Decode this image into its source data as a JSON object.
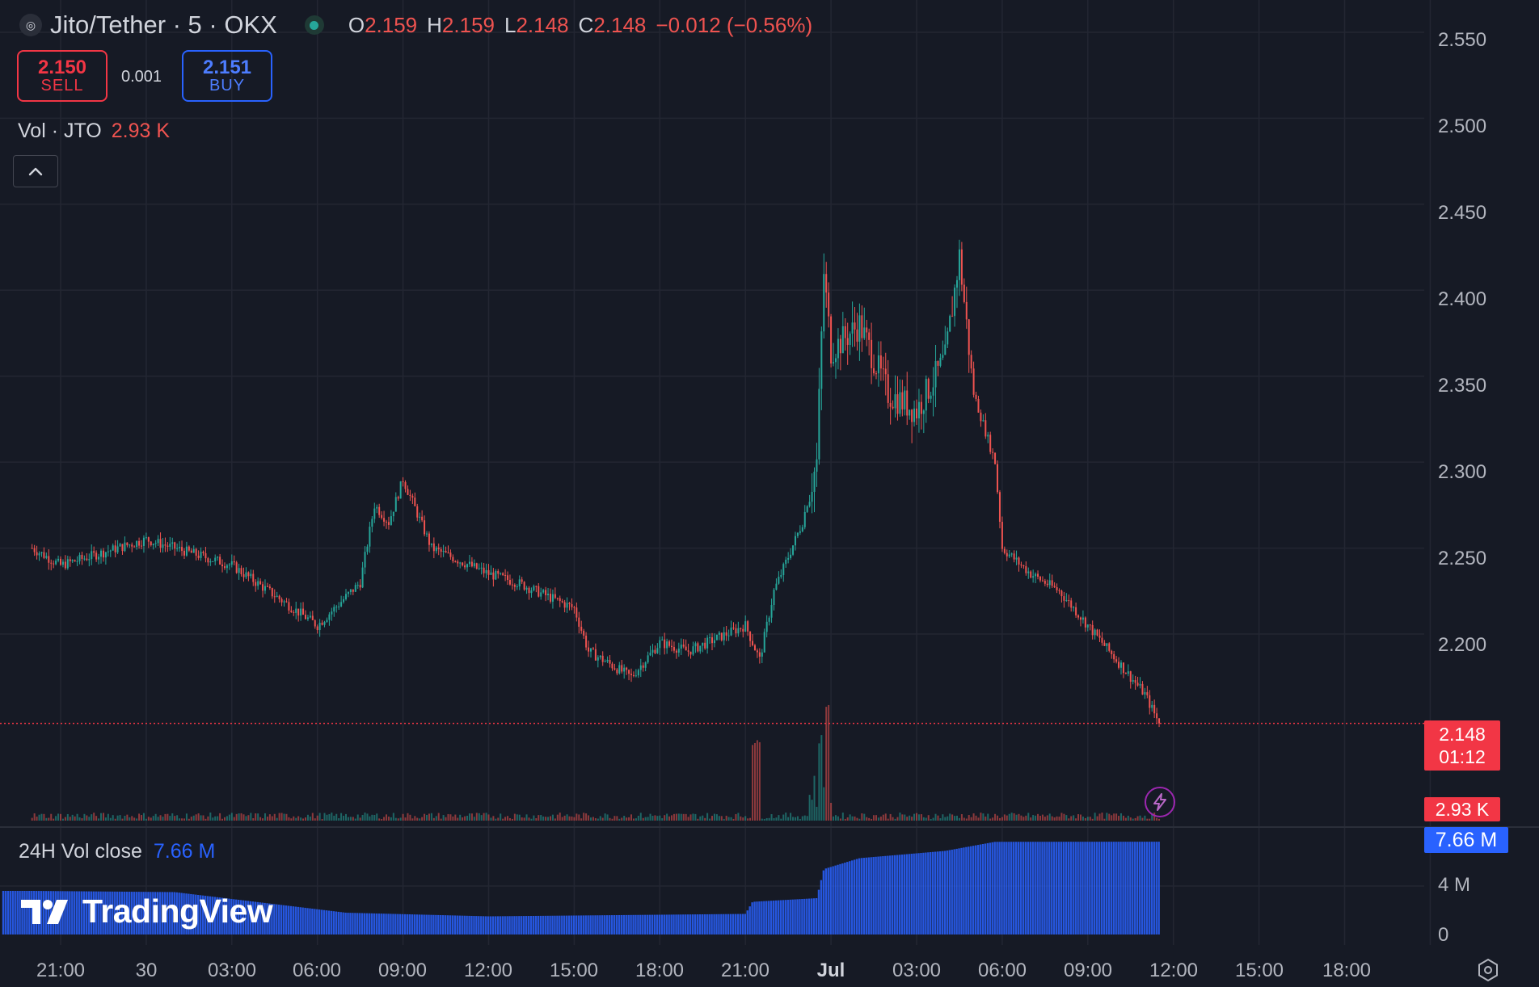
{
  "header": {
    "symbol": "Jito/Tether · 5 · OKX",
    "symbol_icon": "jito-logo-icon",
    "market_status_icon": "market-open-dot-icon",
    "ohlc": [
      {
        "key": "O",
        "value": "2.159"
      },
      {
        "key": "H",
        "value": "2.159"
      },
      {
        "key": "L",
        "value": "2.148"
      },
      {
        "key": "C",
        "value": "2.148"
      }
    ],
    "change": "−0.012 (−0.56%)"
  },
  "trade": {
    "sell_price": "2.150",
    "sell_label": "SELL",
    "spread": "0.001",
    "buy_price": "2.151",
    "buy_label": "BUY"
  },
  "volume_legend": {
    "label": "Vol · JTO",
    "value": "2.93 K"
  },
  "indicator_legend": {
    "label": "24H Vol close",
    "value": "7.66 M"
  },
  "branding": {
    "logo_text": "TradingView"
  },
  "price_axis": {
    "labels": [
      "2.550",
      "2.500",
      "2.450",
      "2.400",
      "2.350",
      "2.300",
      "2.250",
      "2.200"
    ],
    "last_price": "2.148",
    "countdown": "01:12",
    "volume_tag": "2.93 K",
    "vol24_tag": "7.66 M",
    "indicator_labels": [
      "4 M",
      "0"
    ]
  },
  "time_axis": {
    "labels": [
      "21:00",
      "30",
      "03:00",
      "06:00",
      "09:00",
      "12:00",
      "15:00",
      "18:00",
      "21:00",
      "Jul",
      "03:00",
      "06:00",
      "09:00",
      "12:00",
      "15:00",
      "18:00"
    ]
  },
  "colors": {
    "background": "#161a25",
    "grid": "#232632",
    "up": "#26a69a",
    "down": "#ef5350",
    "indicator": "#2962ff"
  },
  "chart_data": {
    "type": "candlestick",
    "symbol": "Jito/Tether",
    "interval": "5",
    "exchange": "OKX",
    "ylim": [
      2.13,
      2.56
    ],
    "price_ticks": [
      2.2,
      2.25,
      2.3,
      2.35,
      2.4,
      2.45,
      2.5,
      2.55
    ],
    "x": [
      "29 20:00",
      "29 21:00",
      "30 00:00",
      "30 03:00",
      "30 06:00",
      "30 07:30",
      "30 08:00",
      "30 08:30",
      "30 09:00",
      "30 10:00",
      "30 12:00",
      "30 13:00",
      "30 15:00",
      "30 15:30",
      "30 17:00",
      "30 18:00",
      "30 19:00",
      "30 21:00",
      "30 21:30",
      "30 22:00",
      "30 23:00",
      "30 23:30",
      "30 23:45",
      "1 00:00",
      "1 01:00",
      "1 02:00",
      "1 03:00",
      "1 04:00",
      "1 04:30",
      "1 05:00",
      "1 05:45",
      "1 06:00",
      "1 07:00",
      "1 08:00",
      "1 09:00",
      "1 10:00",
      "1 11:00",
      "1 11:30"
    ],
    "close": [
      2.25,
      2.24,
      2.255,
      2.24,
      2.205,
      2.23,
      2.275,
      2.265,
      2.29,
      2.25,
      2.235,
      2.23,
      2.215,
      2.19,
      2.175,
      2.195,
      2.19,
      2.205,
      2.185,
      2.225,
      2.265,
      2.3,
      2.41,
      2.365,
      2.38,
      2.34,
      2.33,
      2.36,
      2.42,
      2.34,
      2.3,
      2.25,
      2.235,
      2.225,
      2.205,
      2.185,
      2.165,
      2.148
    ],
    "volume_last": 2930,
    "indicator": {
      "name": "24H Vol close",
      "last": 7660000,
      "ticks": [
        0,
        4000000
      ],
      "x": [
        "29 20:00",
        "30 01:00",
        "30 07:00",
        "30 12:00",
        "30 21:00",
        "30 21:15",
        "30 23:30",
        "30 23:45",
        "1 01:00",
        "1 04:00",
        "1 05:45",
        "1 11:50"
      ],
      "values": [
        3600000,
        3500000,
        1800000,
        1500000,
        1700000,
        2700000,
        3000000,
        5400000,
        6300000,
        6900000,
        7650000,
        7660000
      ]
    }
  }
}
